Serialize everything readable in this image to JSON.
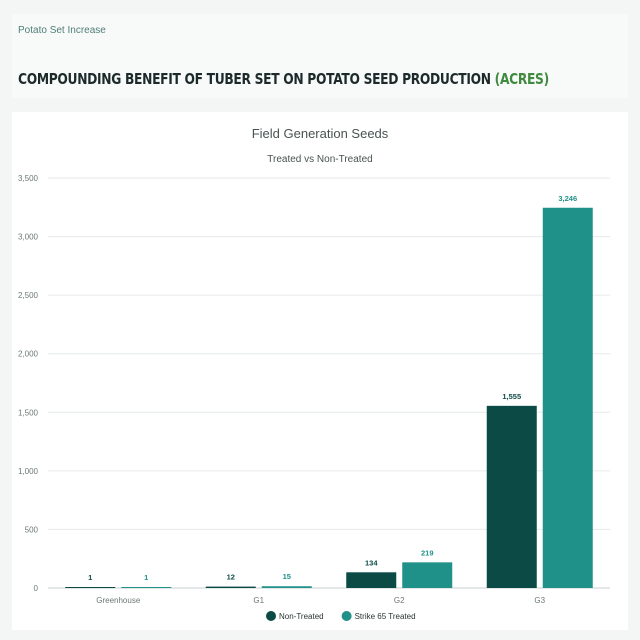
{
  "header": {
    "eyebrow": "Potato Set Increase",
    "headline_main": "COMPOUNDING BENEFIT OF TUBER SET ON POTATO SEED PRODUCTION ",
    "headline_accent": "(ACRES)"
  },
  "colors": {
    "non_treated": "#0b4a45",
    "treated": "#1f9189",
    "accent_green": "#3f8a3d"
  },
  "chart_data": {
    "type": "bar",
    "title": "Field Generation Seeds",
    "subtitle": "Treated vs Non-Treated",
    "categories": [
      "Greenhouse",
      "G1",
      "G2",
      "G3"
    ],
    "series": [
      {
        "name": "Non-Treated",
        "values": [
          1,
          12,
          134,
          1555
        ],
        "labels": [
          "1",
          "12",
          "134",
          "1,555"
        ]
      },
      {
        "name": "Strike 65 Treated",
        "values": [
          1,
          15,
          219,
          3246
        ],
        "labels": [
          "1",
          "15",
          "219",
          "3,246"
        ]
      }
    ],
    "ylim": [
      0,
      3500
    ],
    "yticks": [
      0,
      500,
      1000,
      1500,
      2000,
      2500,
      3000,
      3500
    ],
    "ytick_labels": [
      "0",
      "500",
      "1,000",
      "1,500",
      "2,000",
      "2,500",
      "3,000",
      "3,500"
    ],
    "grid": true,
    "legend_position": "bottom-center"
  }
}
